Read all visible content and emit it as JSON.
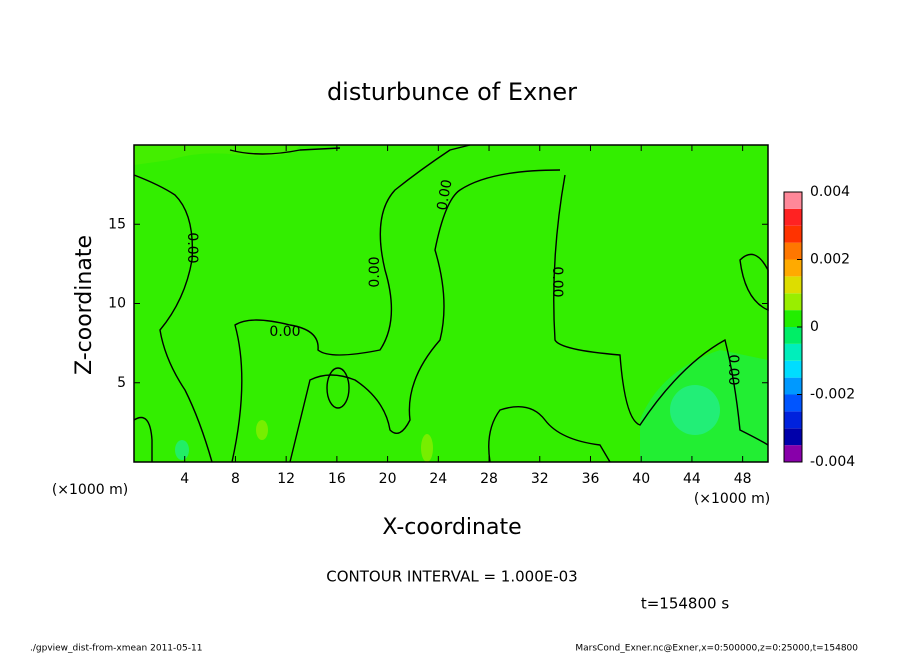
{
  "chart_data": {
    "type": "contour",
    "title": "disturbunce of Exner",
    "x_label": "X-coordinate",
    "y_label": "Z-coordinate",
    "x_unit_labels": [
      "(×1000 m)",
      "(×1000 m)"
    ],
    "xlim": [
      0,
      50
    ],
    "xticks": [
      4,
      8,
      12,
      16,
      20,
      24,
      28,
      32,
      36,
      40,
      44,
      48
    ],
    "ylim": [
      0,
      20
    ],
    "yticks": [
      5,
      10,
      15
    ],
    "clim": [
      -0.004,
      0.004
    ],
    "cticks": [
      -0.004,
      -0.002,
      0,
      0.002,
      0.004
    ],
    "colors": [
      "#8800aa",
      "#0000aa",
      "#0022dd",
      "#0055ff",
      "#0099ff",
      "#00ddff",
      "#00eebb",
      "#00ee66",
      "#22ee00",
      "#99ee00",
      "#dddd00",
      "#ffaa00",
      "#ff7700",
      "#ff3300",
      "#ff2222",
      "#ff8899"
    ],
    "contour_labels": [
      "0.00",
      "0.00",
      "0.00",
      "0.00",
      "0.00",
      "0.00"
    ],
    "contour_interval": "CONTOUR INTERVAL = 1.000E-03",
    "time_label": "t=154800 s",
    "footer_left": "./gpview_dist-from-xmean  2011-05-11",
    "footer_right": "MarsCond_Exner.nc@Exner,x=0:500000,z=0:25000,t=154800"
  }
}
